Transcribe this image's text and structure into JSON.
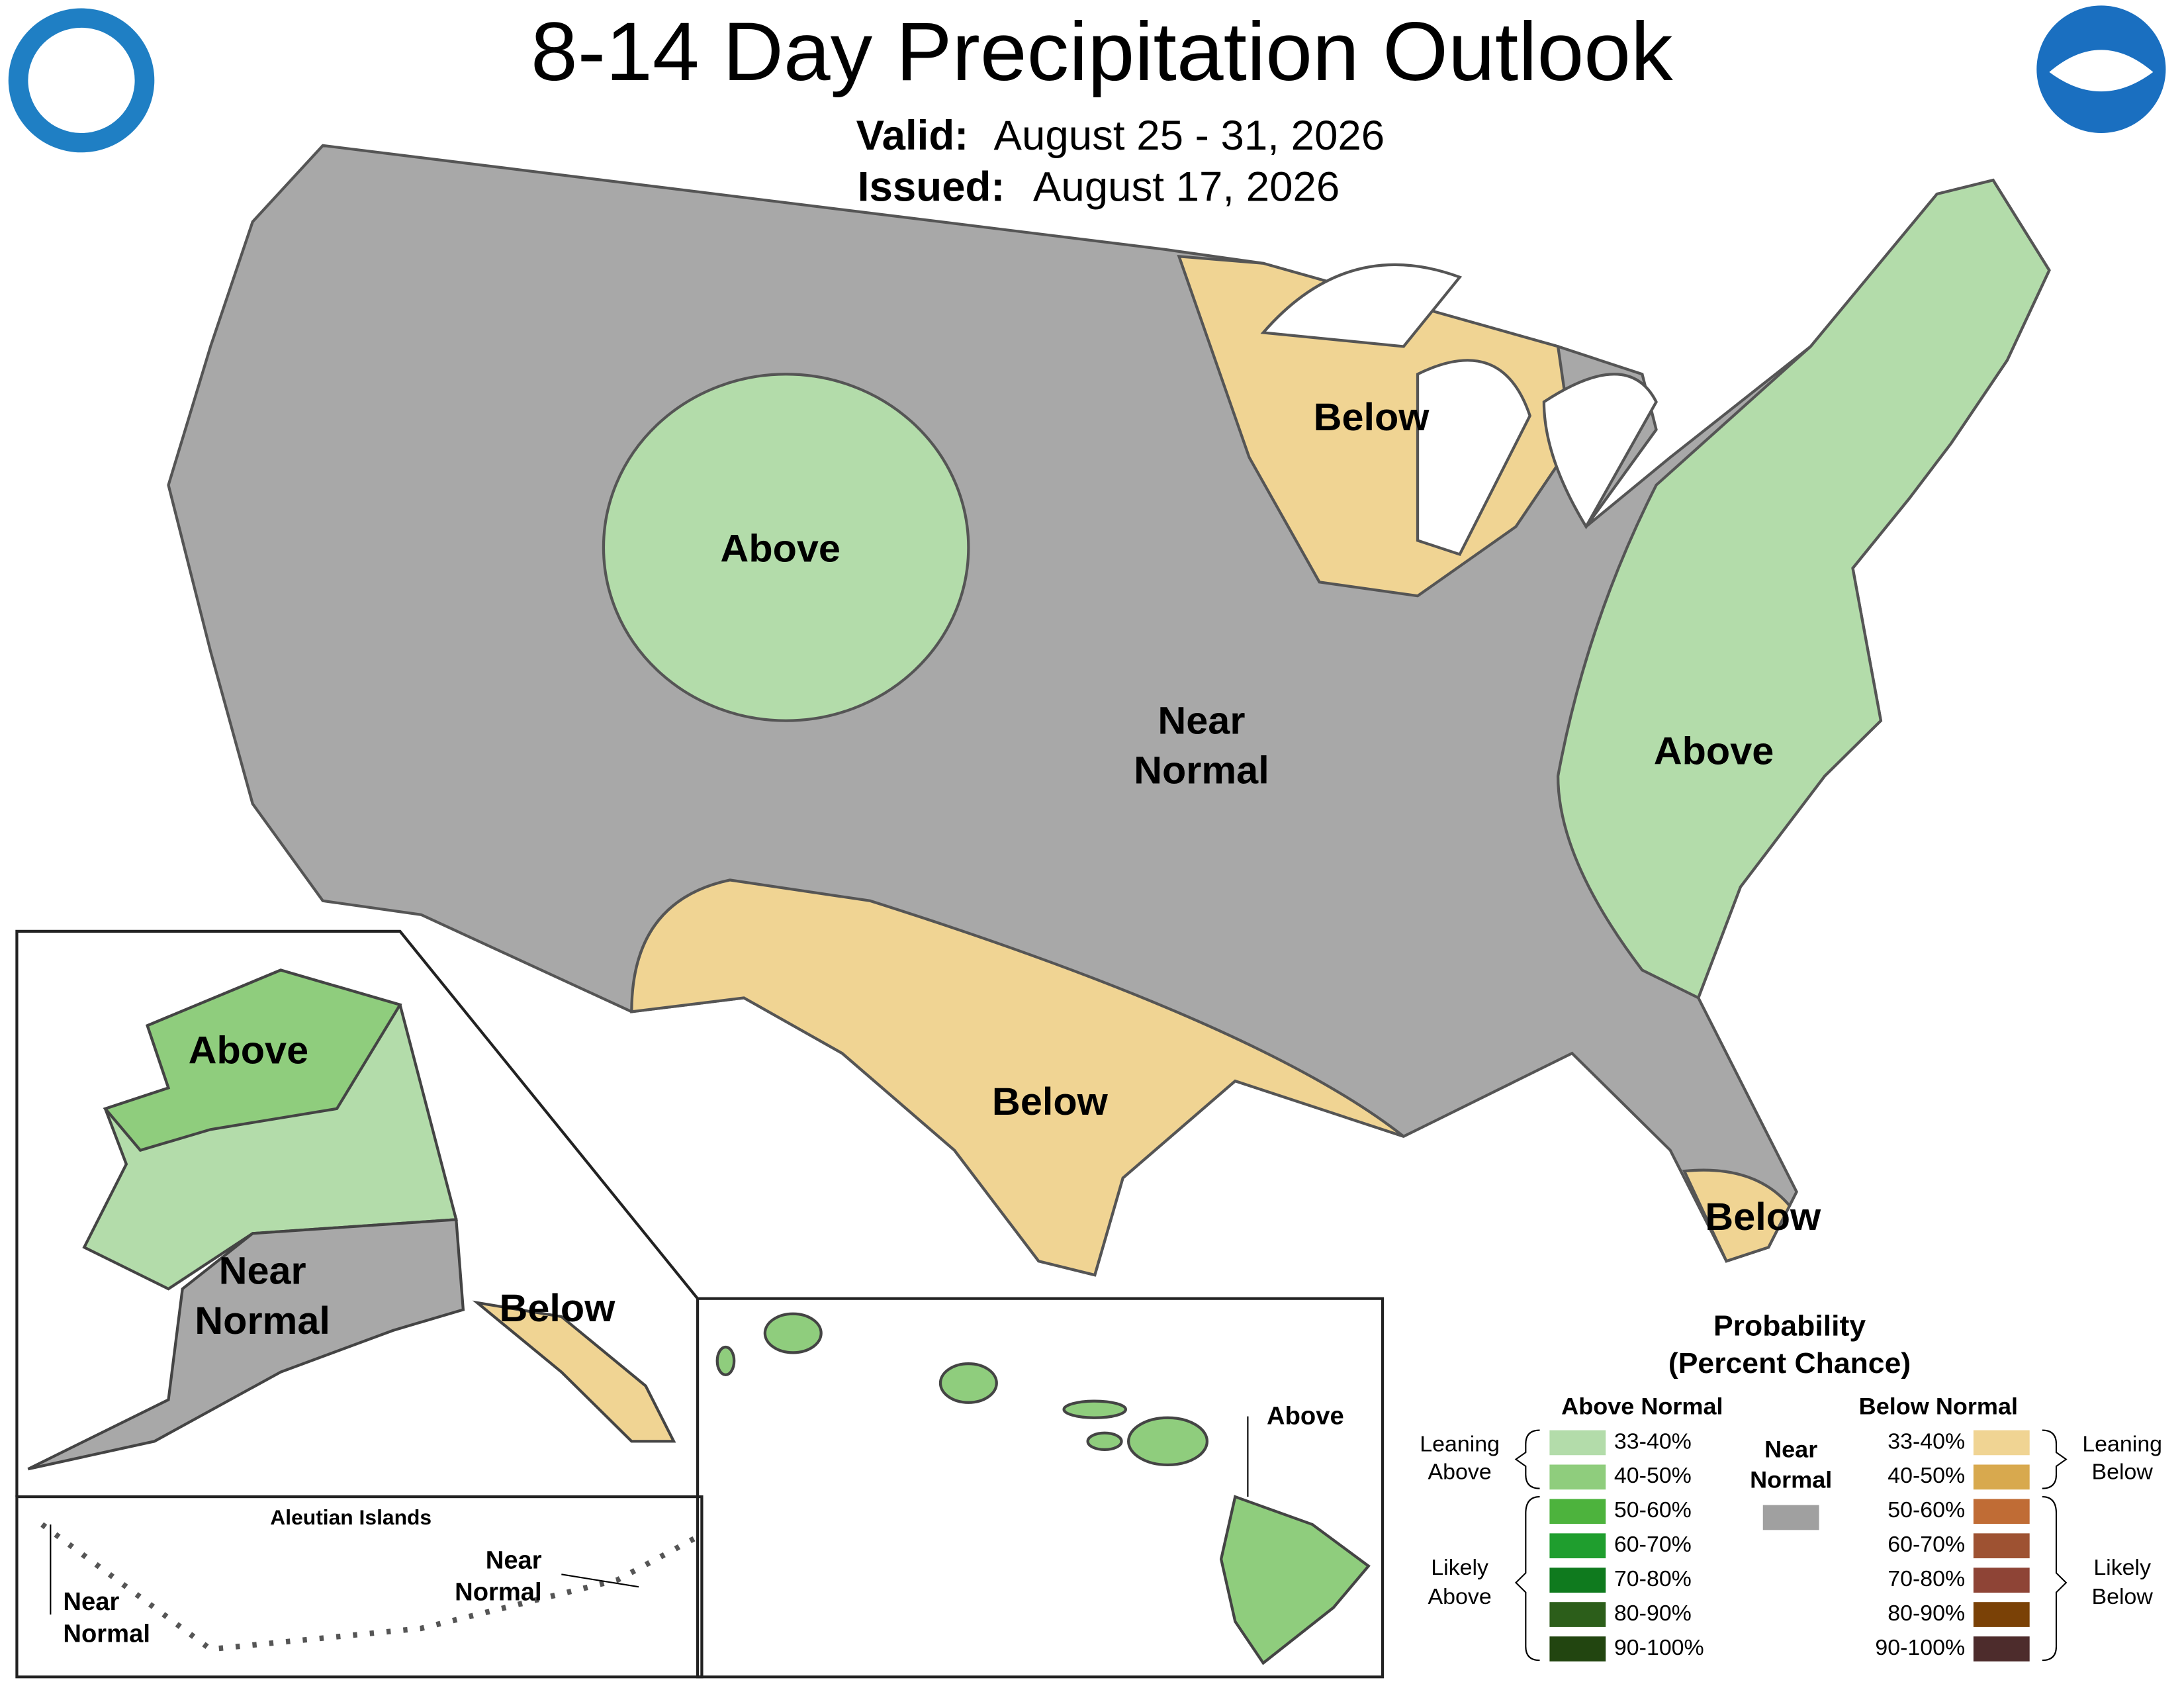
{
  "header": {
    "title": "8-14 Day Precipitation Outlook",
    "valid_label": "Valid:",
    "valid_date": "August 25 - 31, 2026",
    "issued_label": "Issued:",
    "issued_date": "August 17, 2026"
  },
  "conus_labels": {
    "rockies": "Above",
    "great_lakes": "Below",
    "central": [
      "Near",
      "Normal"
    ],
    "east": "Above",
    "texas": "Below",
    "florida": "Below"
  },
  "alaska_labels": {
    "north": "Above",
    "south": [
      "Near",
      "Normal"
    ],
    "panhandle": "Below"
  },
  "aleutian": {
    "title": "Aleutian Islands",
    "west": [
      "Near",
      "Normal"
    ],
    "east": [
      "Near",
      "Normal"
    ]
  },
  "hawaii": {
    "label": "Above"
  },
  "legend": {
    "title": "Probability",
    "subtitle": "(Percent Chance)",
    "above_heading": "Above Normal",
    "below_heading": "Below Normal",
    "near": [
      "Near",
      "Normal"
    ],
    "near_color": "#a0a0a0",
    "above_bins": [
      "33-40%",
      "40-50%",
      "50-60%",
      "60-70%",
      "70-80%",
      "80-90%",
      "90-100%"
    ],
    "above_colors": [
      "#b3dcaa",
      "#8fcd7d",
      "#4db33d",
      "#1f9e2e",
      "#0f7a1e",
      "#2c5e1a",
      "#224510"
    ],
    "below_bins": [
      "33-40%",
      "40-50%",
      "50-60%",
      "60-70%",
      "70-80%",
      "80-90%",
      "90-100%"
    ],
    "below_colors": [
      "#f0d493",
      "#d8a94e",
      "#c06c35",
      "#9e5232",
      "#8e4436",
      "#7a4106",
      "#4d2c2c"
    ],
    "leaning_above": [
      "Leaning",
      "Above"
    ],
    "likely_above": [
      "Likely",
      "Above"
    ],
    "leaning_below": [
      "Leaning",
      "Below"
    ],
    "likely_below": [
      "Likely",
      "Below"
    ]
  }
}
